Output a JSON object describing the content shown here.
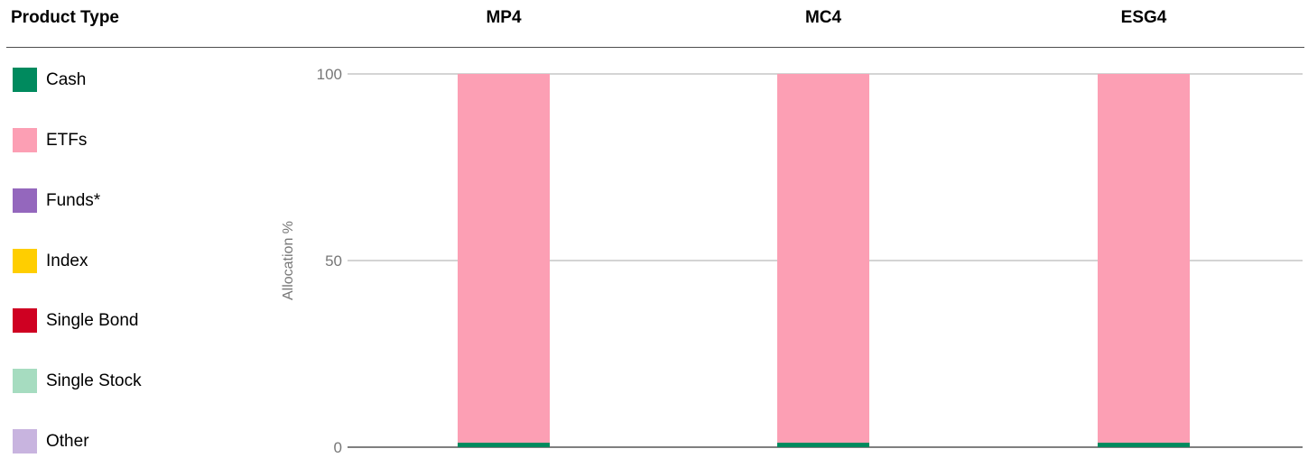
{
  "header": {
    "product_type_label": "Product Type"
  },
  "legend": [
    {
      "label": "Cash",
      "color": "#008A5E"
    },
    {
      "label": "ETFs",
      "color": "#FC9FB4"
    },
    {
      "label": "Funds*",
      "color": "#9467BD"
    },
    {
      "label": "Index",
      "color": "#FFCE00"
    },
    {
      "label": "Single Bond",
      "color": "#CF0022"
    },
    {
      "label": "Single Stock",
      "color": "#A6DCC0"
    },
    {
      "label": "Other",
      "color": "#C8B4DF"
    }
  ],
  "chart_data": {
    "type": "bar",
    "stacked": true,
    "categories": [
      "MP4",
      "MC4",
      "ESG4"
    ],
    "series": [
      {
        "name": "Cash",
        "values": [
          1.2,
          1.2,
          1.2
        ],
        "color": "#008A5E"
      },
      {
        "name": "ETFs",
        "values": [
          98.8,
          98.8,
          98.8
        ],
        "color": "#FC9FB4"
      },
      {
        "name": "Funds*",
        "values": [
          0,
          0,
          0
        ],
        "color": "#9467BD"
      },
      {
        "name": "Index",
        "values": [
          0,
          0,
          0
        ],
        "color": "#FFCE00"
      },
      {
        "name": "Single Bond",
        "values": [
          0,
          0,
          0
        ],
        "color": "#CF0022"
      },
      {
        "name": "Single Stock",
        "values": [
          0,
          0,
          0
        ],
        "color": "#A6DCC0"
      },
      {
        "name": "Other",
        "values": [
          0,
          0,
          0
        ],
        "color": "#C8B4DF"
      }
    ],
    "ylabel": "Allocation %",
    "ylim": [
      0,
      100
    ],
    "yticks": [
      "0",
      "50",
      "100"
    ],
    "grid": true,
    "legend_position": "left"
  }
}
